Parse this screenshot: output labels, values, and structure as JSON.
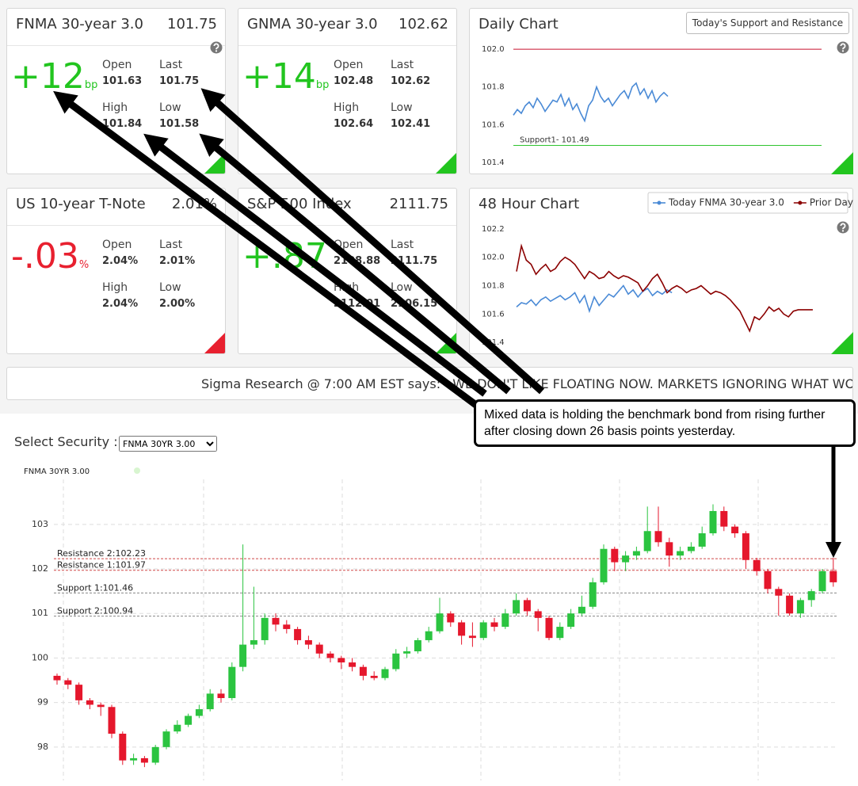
{
  "cards": {
    "field_labels": [
      "Open",
      "Last",
      "High",
      "Low"
    ],
    "items": [
      {
        "title": "FNMA 30-year 3.0",
        "price": "101.75",
        "change": "+12",
        "unit": "bp",
        "color": "#22c51f",
        "values": [
          "101.63",
          "101.75",
          "101.84",
          "101.58"
        ]
      },
      {
        "title": "GNMA 30-year 3.0",
        "price": "102.62",
        "change": "+14",
        "unit": "bp",
        "color": "#22c51f",
        "values": [
          "102.48",
          "102.62",
          "102.64",
          "102.41"
        ]
      },
      {
        "title": "US 10-year T-Note",
        "price": "2.01%",
        "change": "-.03",
        "unit": "%",
        "color": "#e8202f",
        "values": [
          "2.04%",
          "2.01%",
          "2.04%",
          "2.00%"
        ]
      },
      {
        "title": "S&P 500 Index",
        "price": "2111.75",
        "change": "+.87",
        "color": "#22c51f",
        "values": [
          "2108.88",
          "2111.75",
          "2112.01",
          "2106.15"
        ]
      }
    ]
  },
  "ticker": {
    "source": "Sigma Research @ 7:00 AM EST says:",
    "message": "WE DON'T LIKE FLOATING NOW. MARKETS IGNORING WHAT WOULD NO"
  },
  "selector": {
    "label": "Select Security :",
    "option": "FNMA 30YR 3.00"
  },
  "callout": "Mixed data is holding the benchmark bond from rising further after closing down 26 basis points yesterday.",
  "chart_data": [
    {
      "type": "line",
      "title": "Daily Chart",
      "button": "Today's Support and Resistance",
      "ylim": [
        101.37,
        102.03
      ],
      "yticks": [
        {
          "value": 102,
          "label": "102.0"
        },
        101.8,
        101.6,
        101.4
      ],
      "levels": [
        {
          "value": 102,
          "color": "#c8102e"
        },
        {
          "value": 101.49,
          "label": "Support1- 101.49",
          "color": "#2fc42f"
        }
      ],
      "series": [
        {
          "color": "#4a8ad6",
          "values": [
            101.65,
            101.68,
            101.66,
            101.7,
            101.72,
            101.69,
            101.74,
            101.71,
            101.67,
            101.7,
            101.73,
            101.72,
            101.76,
            101.7,
            101.74,
            101.68,
            101.71,
            101.66,
            101.62,
            101.7,
            101.73,
            101.8,
            101.75,
            101.72,
            101.74,
            101.7,
            101.73,
            101.76,
            101.78,
            101.74,
            101.8,
            101.82,
            101.76,
            101.79,
            101.74,
            101.78,
            101.72,
            101.75,
            101.77,
            101.75
          ]
        }
      ]
    },
    {
      "type": "line",
      "title": "48 Hour Chart",
      "legend": "top-right",
      "ylim": [
        101.356,
        102.244
      ],
      "yticks": [
        102.2,
        {
          "value": 102,
          "label": "102.0"
        },
        101.8,
        101.6,
        101.4
      ],
      "series": [
        {
          "name": "Today FNMA 30-year 3.0",
          "color": "#4a8ad6",
          "values": [
            101.65,
            101.68,
            101.67,
            101.7,
            101.66,
            101.7,
            101.72,
            101.69,
            101.71,
            101.73,
            101.7,
            101.72,
            101.75,
            101.68,
            101.73,
            101.62,
            101.72,
            101.66,
            101.7,
            101.74,
            101.72,
            101.76,
            101.8,
            101.74,
            101.77,
            101.72,
            101.76,
            101.78,
            101.73,
            101.76,
            101.74,
            101.77,
            101.75
          ]
        },
        {
          "name": "Prior Day",
          "color": "#8b0000",
          "values": [
            101.9,
            102.08,
            101.98,
            101.95,
            101.88,
            101.92,
            101.95,
            101.9,
            101.92,
            101.97,
            102.0,
            101.98,
            101.95,
            101.9,
            101.85,
            101.9,
            101.88,
            101.85,
            101.86,
            101.9,
            101.87,
            101.85,
            101.87,
            101.86,
            101.84,
            101.82,
            101.76,
            101.8,
            101.85,
            101.88,
            101.82,
            101.75,
            101.78,
            101.8,
            101.78,
            101.75,
            101.77,
            101.78,
            101.8,
            101.77,
            101.74,
            101.76,
            101.75,
            101.73,
            101.7,
            101.66,
            101.62,
            101.55,
            101.48,
            101.58,
            101.56,
            101.6,
            101.65,
            101.62,
            101.64,
            101.6,
            101.58,
            101.62,
            101.63,
            101.63,
            101.63,
            101.63
          ]
        }
      ]
    },
    {
      "type": "candlestick",
      "series_name": "FNMA 30YR 3.00",
      "up_color": "#2bc440",
      "down_color": "#e5172c",
      "grid": true,
      "ylim": [
        97.25,
        104.1
      ],
      "yticks": [
        98,
        99,
        100,
        101,
        102,
        103
      ],
      "levels": [
        {
          "label": "Resistance 2:102.23",
          "value": 102.23,
          "color": "#d04848"
        },
        {
          "label": "Resistance 1:101.97",
          "value": 101.97,
          "color": "#d04848"
        },
        {
          "label": "Support 1:101.46",
          "value": 101.46,
          "color": "#888888"
        },
        {
          "label": "Support 2:100.94",
          "value": 100.94,
          "color": "#888888"
        }
      ],
      "open": [
        99.6,
        99.5,
        99.4,
        99.05,
        98.95,
        98.9,
        98.3,
        97.7,
        97.75,
        97.65,
        98.0,
        98.35,
        98.5,
        98.7,
        98.85,
        99.2,
        99.1,
        99.8,
        100.3,
        100.4,
        100.9,
        100.75,
        100.65,
        100.4,
        100.3,
        100.1,
        100.0,
        99.9,
        99.8,
        99.6,
        99.55,
        99.75,
        100.1,
        100.15,
        100.4,
        100.6,
        101.0,
        100.8,
        100.5,
        100.45,
        100.8,
        100.7,
        101.0,
        101.3,
        101.05,
        100.9,
        100.45,
        100.7,
        101.0,
        101.15,
        101.7,
        102.45,
        102.15,
        102.3,
        102.4,
        102.85,
        102.6,
        102.3,
        102.4,
        102.5,
        102.8,
        103.3,
        102.95,
        102.8,
        102.2,
        101.95,
        101.55,
        101.4,
        101.0,
        101.3,
        101.5,
        101.95
      ],
      "high": [
        99.65,
        99.55,
        99.45,
        99.1,
        99.0,
        98.95,
        98.35,
        97.85,
        97.8,
        98.05,
        98.4,
        98.6,
        98.75,
        98.95,
        99.3,
        99.3,
        99.9,
        102.55,
        101.6,
        101.0,
        101.0,
        100.85,
        100.7,
        100.5,
        100.35,
        100.15,
        100.05,
        100.0,
        99.85,
        99.7,
        99.8,
        100.2,
        100.25,
        100.45,
        100.7,
        101.35,
        101.05,
        100.85,
        100.8,
        100.85,
        100.9,
        101.1,
        101.45,
        101.35,
        101.1,
        100.95,
        100.8,
        101.1,
        101.4,
        101.8,
        102.55,
        102.5,
        102.4,
        102.5,
        103.4,
        103.4,
        102.7,
        102.5,
        102.6,
        102.95,
        103.45,
        103.4,
        103.0,
        102.85,
        102.25,
        102.0,
        101.6,
        101.45,
        101.35,
        101.55,
        102.0,
        102.25
      ],
      "low": [
        99.4,
        99.3,
        98.95,
        98.85,
        98.7,
        98.2,
        97.6,
        97.6,
        97.55,
        97.6,
        97.95,
        98.3,
        98.45,
        98.65,
        98.8,
        99.0,
        99.05,
        99.7,
        100.2,
        100.3,
        100.6,
        100.55,
        100.3,
        100.2,
        100.0,
        99.9,
        99.75,
        99.7,
        99.5,
        99.5,
        99.5,
        99.7,
        100.0,
        100.1,
        100.35,
        100.55,
        100.7,
        100.3,
        100.25,
        100.4,
        100.6,
        100.65,
        100.95,
        100.95,
        100.6,
        100.4,
        100.4,
        100.65,
        100.95,
        101.1,
        101.65,
        101.95,
        101.95,
        102.2,
        102.35,
        102.5,
        102.05,
        102.2,
        102.35,
        102.45,
        102.75,
        102.85,
        102.7,
        102.0,
        101.85,
        101.45,
        100.95,
        100.95,
        100.9,
        101.15,
        101.45,
        101.6
      ],
      "close": [
        99.5,
        99.4,
        99.05,
        98.95,
        98.9,
        98.3,
        97.7,
        97.75,
        97.65,
        98.0,
        98.35,
        98.5,
        98.7,
        98.85,
        99.2,
        99.1,
        99.8,
        100.3,
        100.4,
        100.9,
        100.75,
        100.65,
        100.4,
        100.3,
        100.1,
        100.0,
        99.9,
        99.8,
        99.6,
        99.55,
        99.75,
        100.1,
        100.15,
        100.4,
        100.6,
        101.0,
        100.8,
        100.5,
        100.45,
        100.8,
        100.7,
        101.0,
        101.3,
        101.05,
        100.9,
        100.45,
        100.7,
        101.0,
        101.15,
        101.7,
        102.45,
        102.15,
        102.3,
        102.4,
        102.85,
        102.6,
        102.3,
        102.4,
        102.5,
        102.8,
        103.3,
        102.95,
        102.8,
        102.2,
        101.95,
        101.55,
        101.4,
        101.0,
        101.3,
        101.5,
        101.95,
        101.7
      ]
    }
  ]
}
